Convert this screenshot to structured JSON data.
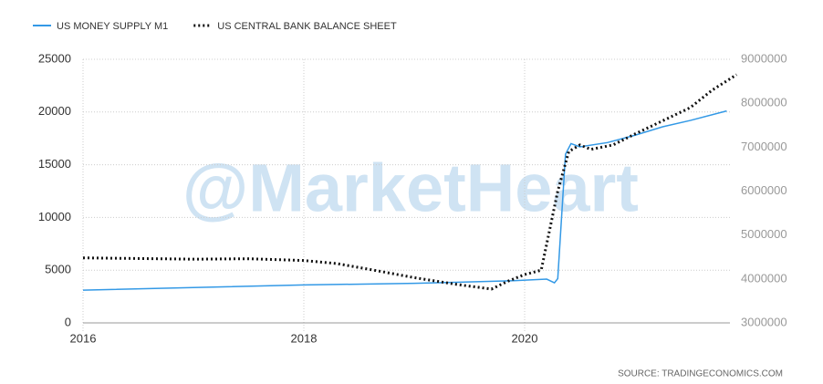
{
  "chart_data": {
    "type": "line",
    "watermark": "@MarketHeart",
    "source": "SOURCE:  TRADINGECONOMICS.COM",
    "xlim": [
      2016,
      2022
    ],
    "xticks": [
      2016,
      2018,
      2020
    ],
    "ylim": [
      0,
      25000
    ],
    "yticks": [
      0,
      5000,
      10000,
      15000,
      20000,
      25000
    ],
    "y2lim": [
      3000000,
      9000000
    ],
    "y2ticks": [
      3000000,
      4000000,
      5000000,
      6000000,
      7000000,
      8000000,
      9000000
    ],
    "grid": true,
    "series": [
      {
        "name": "US MONEY SUPPLY M1",
        "color": "#3399e6",
        "style": "solid",
        "x": [
          2016,
          2017,
          2018,
          2019,
          2019.9,
          2020.2,
          2020.27,
          2020.3,
          2020.37,
          2020.42,
          2020.5,
          2020.75,
          2021,
          2021.25,
          2021.5,
          2021.83
        ],
        "values": [
          3100,
          3350,
          3600,
          3750,
          4000,
          4150,
          3800,
          4200,
          16000,
          17000,
          16700,
          17100,
          17800,
          18600,
          19200,
          20100
        ]
      },
      {
        "name": "US CENTRAL BANK BALANCE SHEET",
        "color": "#111111",
        "style": "dotted",
        "axis": "y2",
        "x": [
          2016,
          2017,
          2017.5,
          2018,
          2018.3,
          2018.7,
          2019,
          2019.4,
          2019.7,
          2019.85,
          2020,
          2020.15,
          2020.3,
          2020.4,
          2020.5,
          2020.6,
          2020.8,
          2021,
          2021.25,
          2021.5,
          2021.7,
          2021.92
        ],
        "values": [
          4480000,
          4450000,
          4460000,
          4420000,
          4350000,
          4170000,
          4030000,
          3870000,
          3770000,
          3950000,
          4100000,
          4200000,
          6000000,
          6900000,
          7050000,
          6950000,
          7050000,
          7300000,
          7600000,
          7900000,
          8300000,
          8650000
        ]
      }
    ]
  }
}
